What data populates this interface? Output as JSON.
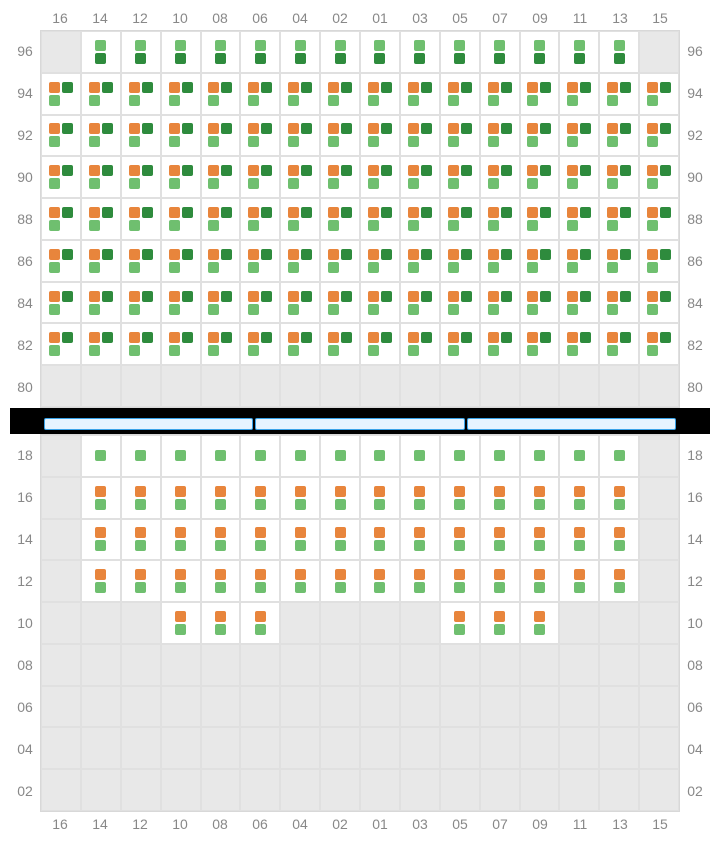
{
  "colors": {
    "orange": "#e8853c",
    "dark_green": "#2e8b3d",
    "light_green": "#6fbf6f",
    "label": "#888888",
    "cell_bg": "#ffffff",
    "empty_bg": "#e8e8e8",
    "border": "#e0e0e0",
    "band_bg": "#e6f4ff",
    "band_border": "#3aa3e8"
  },
  "columns": [
    "16",
    "14",
    "12",
    "10",
    "08",
    "06",
    "04",
    "02",
    "01",
    "03",
    "05",
    "07",
    "09",
    "11",
    "13",
    "15"
  ],
  "top_section": {
    "rows": [
      "96",
      "94",
      "92",
      "90",
      "88",
      "86",
      "84",
      "82",
      "80"
    ],
    "cells": [
      [
        0,
        2,
        2,
        2,
        2,
        2,
        2,
        2,
        2,
        2,
        2,
        2,
        2,
        2,
        2,
        0
      ],
      [
        1,
        1,
        1,
        1,
        1,
        1,
        1,
        1,
        1,
        1,
        1,
        1,
        1,
        1,
        1,
        1
      ],
      [
        1,
        1,
        1,
        1,
        1,
        1,
        1,
        1,
        1,
        1,
        1,
        1,
        1,
        1,
        1,
        1
      ],
      [
        1,
        1,
        1,
        1,
        1,
        1,
        1,
        1,
        1,
        1,
        1,
        1,
        1,
        1,
        1,
        1
      ],
      [
        1,
        1,
        1,
        1,
        1,
        1,
        1,
        1,
        1,
        1,
        1,
        1,
        1,
        1,
        1,
        1
      ],
      [
        1,
        1,
        1,
        1,
        1,
        1,
        1,
        1,
        1,
        1,
        1,
        1,
        1,
        1,
        1,
        1
      ],
      [
        1,
        1,
        1,
        1,
        1,
        1,
        1,
        1,
        1,
        1,
        1,
        1,
        1,
        1,
        1,
        1
      ],
      [
        1,
        1,
        1,
        1,
        1,
        1,
        1,
        1,
        1,
        1,
        1,
        1,
        1,
        1,
        1,
        1
      ],
      [
        0,
        0,
        0,
        0,
        0,
        0,
        0,
        0,
        0,
        0,
        0,
        0,
        0,
        0,
        0,
        0
      ]
    ]
  },
  "band_segments": 3,
  "bottom_section": {
    "rows": [
      "18",
      "16",
      "14",
      "12",
      "10",
      "08",
      "06",
      "04",
      "02"
    ],
    "cells": [
      [
        0,
        4,
        4,
        4,
        4,
        4,
        4,
        4,
        4,
        4,
        4,
        4,
        4,
        4,
        4,
        0
      ],
      [
        0,
        3,
        3,
        3,
        3,
        3,
        3,
        3,
        3,
        3,
        3,
        3,
        3,
        3,
        3,
        0
      ],
      [
        0,
        3,
        3,
        3,
        3,
        3,
        3,
        3,
        3,
        3,
        3,
        3,
        3,
        3,
        3,
        0
      ],
      [
        0,
        3,
        3,
        3,
        3,
        3,
        3,
        3,
        3,
        3,
        3,
        3,
        3,
        3,
        3,
        0
      ],
      [
        0,
        0,
        0,
        3,
        3,
        3,
        0,
        0,
        0,
        0,
        3,
        3,
        3,
        0,
        0,
        0
      ],
      [
        0,
        0,
        0,
        0,
        0,
        0,
        0,
        0,
        0,
        0,
        0,
        0,
        0,
        0,
        0,
        0
      ],
      [
        0,
        0,
        0,
        0,
        0,
        0,
        0,
        0,
        0,
        0,
        0,
        0,
        0,
        0,
        0,
        0
      ],
      [
        0,
        0,
        0,
        0,
        0,
        0,
        0,
        0,
        0,
        0,
        0,
        0,
        0,
        0,
        0,
        0
      ],
      [
        0,
        0,
        0,
        0,
        0,
        0,
        0,
        0,
        0,
        0,
        0,
        0,
        0,
        0,
        0,
        0
      ]
    ]
  },
  "cell_types": {
    "0": {
      "filled": false,
      "dots": []
    },
    "1": {
      "filled": true,
      "dots": [
        "orange",
        "dark_green",
        "light_green"
      ]
    },
    "2": {
      "filled": true,
      "dots": [
        "light_green",
        "dark_green"
      ]
    },
    "3": {
      "filled": true,
      "dots": [
        "orange",
        "light_green"
      ]
    },
    "4": {
      "filled": true,
      "dots": [
        "light_green"
      ]
    }
  }
}
